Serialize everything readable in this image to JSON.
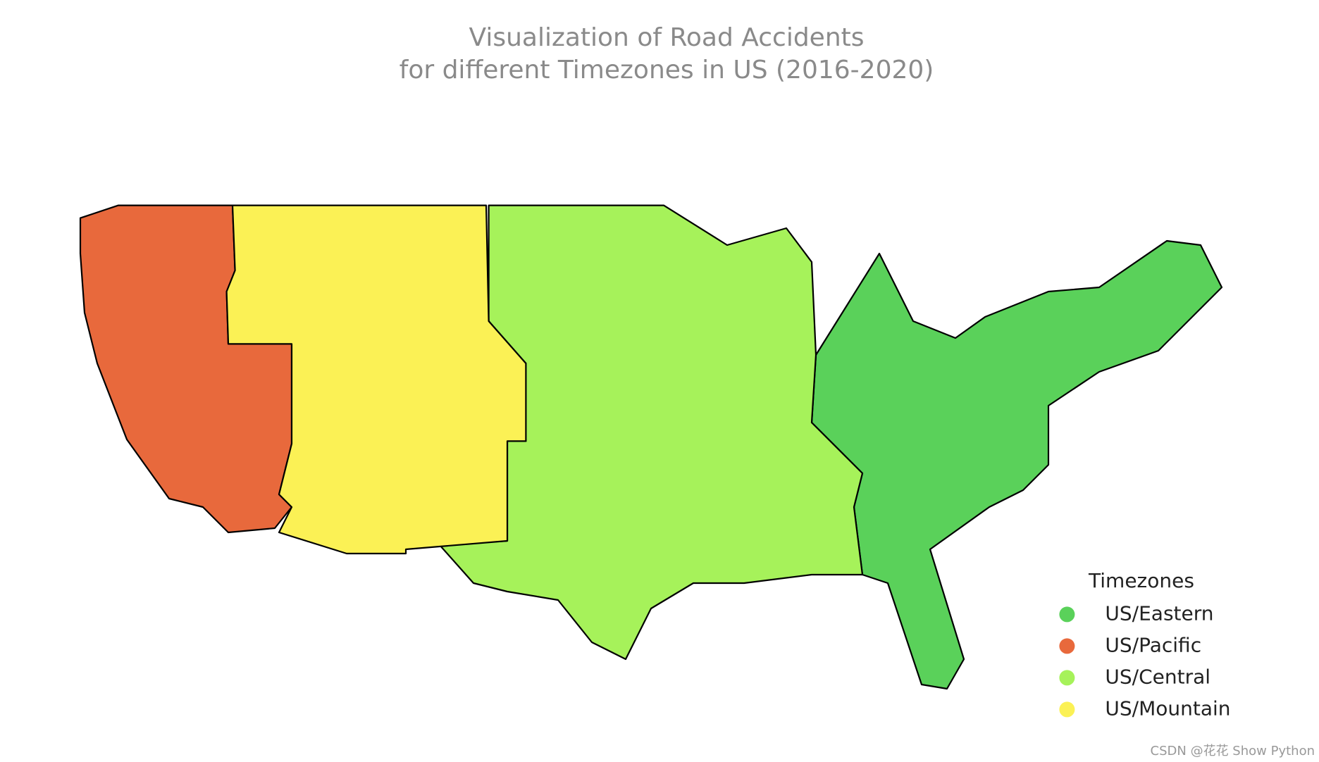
{
  "chart_data": {
    "type": "map",
    "title": [
      "Visualization of Road Accidents",
      "for different Timezones in US (2016-2020)"
    ],
    "legend_title": "Timezones",
    "series": [
      {
        "name": "US/Eastern",
        "color": "#5ad15a"
      },
      {
        "name": "US/Pacific",
        "color": "#e8693c"
      },
      {
        "name": "US/Central",
        "color": "#a6f25a"
      },
      {
        "name": "US/Mountain",
        "color": "#fbf155"
      }
    ],
    "legend": "lower right"
  },
  "watermark": "CSDN @花花 Show Python"
}
